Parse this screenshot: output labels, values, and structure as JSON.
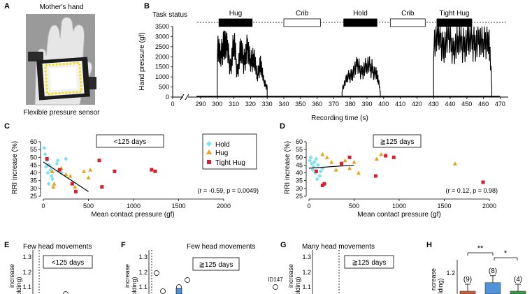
{
  "panels": {
    "A": {
      "letter": "A",
      "title": "Mother's hand",
      "caption": "Flexible pressure sensor"
    },
    "B": {
      "letter": "B",
      "task_status_label": "Task status",
      "tasks": [
        {
          "label": "Hug",
          "start": 301,
          "end": 321,
          "fill": "#000000"
        },
        {
          "label": "Crib",
          "start": 340,
          "end": 362,
          "fill": "#ffffff"
        },
        {
          "label": "Hold",
          "start": 376,
          "end": 396,
          "fill": "#000000"
        },
        {
          "label": "Crib",
          "start": 404,
          "end": 425,
          "fill": "#ffffff"
        },
        {
          "label": "Tight Hug",
          "start": 432,
          "end": 453,
          "fill": "#000000"
        }
      ]
    },
    "C": {
      "letter": "C",
      "tag": "<125 days",
      "stat": "(r = -0.59, p = 0.0049)",
      "legend": [
        {
          "label": "Hold",
          "color": "#7fe0ee",
          "shape": "diamond"
        },
        {
          "label": "Hug",
          "color": "#e8a020",
          "shape": "triangle"
        },
        {
          "label": "Tight Hug",
          "color": "#d62030",
          "shape": "square"
        }
      ]
    },
    "D": {
      "letter": "D",
      "tag": "≧125 days",
      "stat": "(r = 0.12, p = 0.98)"
    },
    "E": {
      "letter": "E",
      "title": "Few head movements",
      "tag": "<125 days",
      "y_label": "increase",
      "y_label2": "olding)",
      "yticks": [
        "1.3",
        "1.2",
        "1.1"
      ]
    },
    "F": {
      "letter": "F",
      "title": "Few head movements",
      "tag": "≧125 days",
      "y_label": "increase",
      "y_label2": "olding)",
      "yticks": [
        "1.3",
        "1.2",
        "1.1"
      ],
      "annotation": "ID147"
    },
    "G": {
      "letter": "G",
      "title": "Many head movements",
      "tag": "≧125 days",
      "y_label": "increase",
      "y_label2": "olding)",
      "yticks": [
        "1.3",
        "1.2",
        "1.1"
      ]
    },
    "H": {
      "letter": "H",
      "y_label": "ncrease",
      "y_label2": "olding)",
      "ytick": "1.2",
      "sig1": "**",
      "sig2": "*",
      "bars": [
        {
          "n": "(9)",
          "value": 1.01,
          "color": "#d0603a"
        },
        {
          "n": "(8)",
          "value": 1.14,
          "color": "#4f94d8"
        },
        {
          "n": "(4)",
          "value": 1.0,
          "color": "#3a9a4a"
        }
      ]
    }
  },
  "chart_data": [
    {
      "type": "line",
      "panel": "B",
      "xlabel": "Recording time (s)",
      "ylabel": "Hand pressure (gf)",
      "xticks": [
        0,
        290,
        300,
        310,
        320,
        330,
        340,
        350,
        360,
        370,
        380,
        390,
        400,
        410,
        420,
        430,
        440,
        450,
        460,
        470
      ],
      "yticks": [
        0,
        500,
        1000,
        1500,
        2000,
        2500,
        3000,
        3500
      ],
      "ylim": [
        0,
        3500
      ],
      "segments": [
        {
          "name": "Hug",
          "x": [
            300,
            302,
            304,
            306,
            308,
            310,
            312,
            314,
            316,
            318,
            320,
            322,
            324,
            326,
            328,
            330
          ],
          "y": [
            2700,
            1800,
            2900,
            2300,
            1500,
            2800,
            1200,
            2400,
            1700,
            2500,
            1600,
            2200,
            900,
            1800,
            700,
            500
          ]
        },
        {
          "name": "Hold",
          "x": [
            375,
            378,
            381,
            384,
            387,
            390,
            393,
            396,
            398
          ],
          "y": [
            400,
            900,
            1200,
            1500,
            1300,
            1600,
            1400,
            1100,
            300
          ]
        },
        {
          "name": "Tight Hug",
          "x": [
            430,
            433,
            436,
            439,
            442,
            445,
            448,
            451,
            454,
            457,
            460,
            463,
            465
          ],
          "y": [
            2700,
            3000,
            2600,
            2850,
            2400,
            2900,
            2550,
            2950,
            2650,
            2800,
            2500,
            3300,
            600
          ]
        }
      ]
    },
    {
      "type": "scatter",
      "panel": "C",
      "xlabel": "Mean contact pressure (gf)",
      "ylabel": "RRI increase (%)",
      "xlim": [
        0,
        2000
      ],
      "ylim": [
        25,
        60
      ],
      "xticks": [
        0,
        500,
        1000,
        1500,
        2000
      ],
      "yticks": [
        25,
        30,
        35,
        40,
        45,
        50,
        55,
        60
      ],
      "fit": {
        "x": [
          0,
          500
        ],
        "y": [
          47,
          28
        ]
      },
      "series": [
        {
          "name": "Hold",
          "points": [
            [
              10,
              56
            ],
            [
              20,
              52
            ],
            [
              40,
              48
            ],
            [
              60,
              45
            ],
            [
              30,
              44
            ],
            [
              80,
              42
            ],
            [
              50,
              40
            ],
            [
              90,
              38
            ],
            [
              60,
              33
            ],
            [
              100,
              36
            ],
            [
              150,
              46
            ],
            [
              160,
              48
            ],
            [
              250,
              49
            ],
            [
              200,
              40
            ]
          ]
        },
        {
          "name": "Hug",
          "points": [
            [
              100,
              41
            ],
            [
              120,
              33
            ],
            [
              110,
              31
            ],
            [
              200,
              43
            ],
            [
              250,
              39
            ],
            [
              300,
              38
            ],
            [
              350,
              31
            ],
            [
              450,
              41
            ],
            [
              500,
              37
            ],
            [
              520,
              42
            ]
          ]
        },
        {
          "name": "Tight Hug",
          "points": [
            [
              40,
              49
            ],
            [
              180,
              42
            ],
            [
              320,
              33
            ],
            [
              360,
              28
            ],
            [
              620,
              48
            ],
            [
              650,
              31
            ],
            [
              790,
              41
            ],
            [
              1200,
              42
            ],
            [
              1240,
              41
            ]
          ]
        }
      ]
    },
    {
      "type": "scatter",
      "panel": "D",
      "xlabel": "Mean contact pressure (gf)",
      "ylabel": "RRI increase (%)",
      "xlim": [
        0,
        2000
      ],
      "ylim": [
        25,
        60
      ],
      "xticks": [
        0,
        500,
        1000,
        1500,
        2000
      ],
      "yticks": [
        25,
        30,
        35,
        40,
        45,
        50,
        55,
        60
      ],
      "fit": {
        "x": [
          0,
          500
        ],
        "y": [
          43,
          45
        ]
      },
      "series": [
        {
          "name": "Hold",
          "points": [
            [
              10,
              48
            ],
            [
              20,
              50
            ],
            [
              30,
              46
            ],
            [
              50,
              44
            ],
            [
              60,
              47
            ],
            [
              40,
              42
            ],
            [
              80,
              49
            ],
            [
              100,
              45
            ],
            [
              70,
              40
            ],
            [
              120,
              38
            ],
            [
              150,
              43
            ],
            [
              90,
              36
            ],
            [
              130,
              41
            ]
          ]
        },
        {
          "name": "Hug",
          "points": [
            [
              150,
              52
            ],
            [
              200,
              50
            ],
            [
              250,
              47
            ],
            [
              300,
              42
            ],
            [
              400,
              48
            ],
            [
              450,
              43
            ],
            [
              500,
              47
            ],
            [
              550,
              40
            ],
            [
              750,
              49
            ],
            [
              800,
              52
            ],
            [
              1620,
              46
            ]
          ]
        },
        {
          "name": "Tight Hug",
          "points": [
            [
              80,
              41
            ],
            [
              150,
              32
            ],
            [
              170,
              33
            ],
            [
              360,
              46
            ],
            [
              450,
              50
            ],
            [
              740,
              38
            ],
            [
              850,
              51
            ],
            [
              940,
              50
            ],
            [
              1930,
              34
            ]
          ]
        }
      ]
    }
  ]
}
